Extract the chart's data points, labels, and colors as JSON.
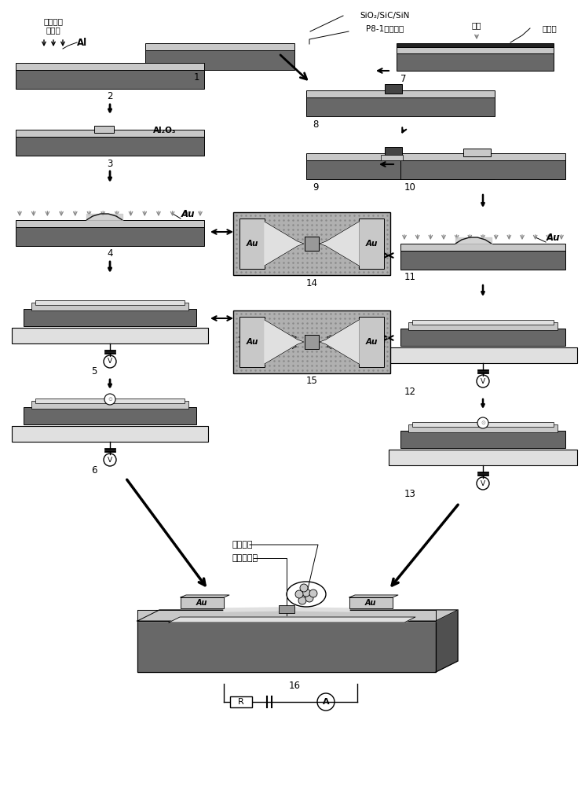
{
  "bg": "#ffffff",
  "c_dark": "#686868",
  "c_mid": "#999999",
  "c_light": "#c8c8c8",
  "c_vlight": "#e0e0e0",
  "c_black": "#111111",
  "c_white": "#ffffff",
  "c_dot": "#b0b0b0",
  "c_verydark": "#444444",
  "c_photoresist": "#222222",
  "c_piezo_light": "#d8d8d8",
  "texts": {
    "step1": "1",
    "step2": "2",
    "step3": "3",
    "step4": "4",
    "step5": "5",
    "step6": "6",
    "step7": "7",
    "step8": "8",
    "step9": "9",
    "step10": "10",
    "step11": "11",
    "step12": "12",
    "step13": "13",
    "step14": "14",
    "step15": "15",
    "step16": "16",
    "Al": "Al",
    "Al2O3": "Al₂O₃",
    "Au": "Au",
    "SiO2": "SiO₂/SiC/SiN",
    "P8": "P8-1压电陶瓷",
    "fib": "聚焦离子\n束沉积",
    "spincoat": "旋涂",
    "photoresist": "光刻胶",
    "organic": "有机分子",
    "stress": "拉应力薄膜",
    "R": "R",
    "A": "A",
    "V": "V"
  }
}
